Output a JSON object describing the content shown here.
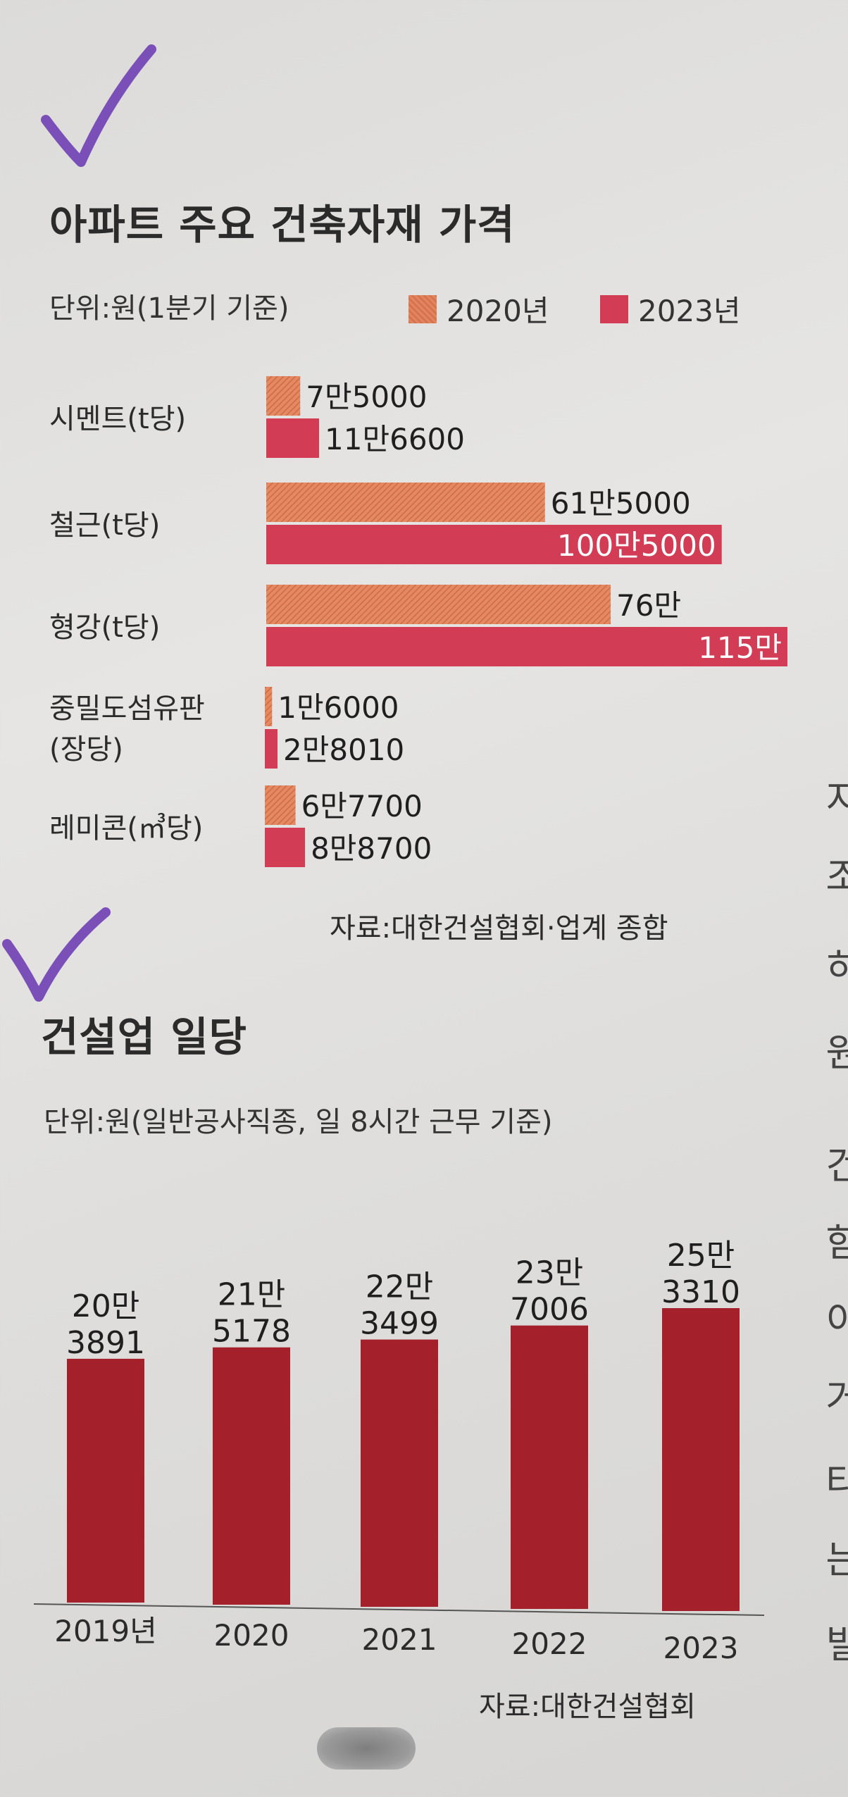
{
  "chart_data": [
    {
      "type": "bar",
      "orientation": "horizontal",
      "title": "아파트 주요 건축자재 가격",
      "unit_note": "단위:원(1분기 기준)",
      "categories": [
        [
          "시멘트(t당)"
        ],
        [
          "철근(t당)"
        ],
        [
          "형강(t당)"
        ],
        [
          "중밀도섬유판",
          "(장당)"
        ],
        [
          "레미콘(㎥당)"
        ]
      ],
      "series": [
        {
          "name": "2020년",
          "color": "#e07a56",
          "values": [
            75000,
            615000,
            760000,
            16000,
            67700
          ],
          "labels": [
            "7만5000",
            "61만5000",
            "76만",
            "1만6000",
            "6만7700"
          ]
        },
        {
          "name": "2023년",
          "color": "#d23c55",
          "values": [
            116600,
            1005000,
            1150000,
            28010,
            88700
          ],
          "labels": [
            "11만6600",
            "100만5000",
            "115만",
            "2만8010",
            "8만8700"
          ]
        }
      ],
      "legend_position": "top-right",
      "source": "자료:대한건설협회·업계 종합"
    },
    {
      "type": "bar",
      "orientation": "vertical",
      "title": "건설업 일당",
      "unit_note": "단위:원(일반공사직종, 일 8시간 근무 기준)",
      "categories": [
        "2019년",
        "2020",
        "2021",
        "2022",
        "2023"
      ],
      "series": [
        {
          "color": "#a4202b",
          "values": [
            203891,
            215178,
            223499,
            237006,
            253310
          ],
          "labels": [
            [
              "20만",
              "3891"
            ],
            [
              "21만",
              "5178"
            ],
            [
              "22만",
              "3499"
            ],
            [
              "23만",
              "7006"
            ],
            [
              "25만",
              "3310"
            ]
          ]
        }
      ],
      "source": "자료:대한건설협회"
    }
  ],
  "side_glyphs": [
    "지",
    "조",
    "히",
    "원",
    "건",
    "함",
    "이",
    "거",
    "타",
    "는",
    "빌"
  ],
  "colors": {
    "check": "#7b4fb8",
    "bar_2020": "#e07a56",
    "bar_2023": "#d23c55",
    "wage_bar": "#a4202b"
  }
}
